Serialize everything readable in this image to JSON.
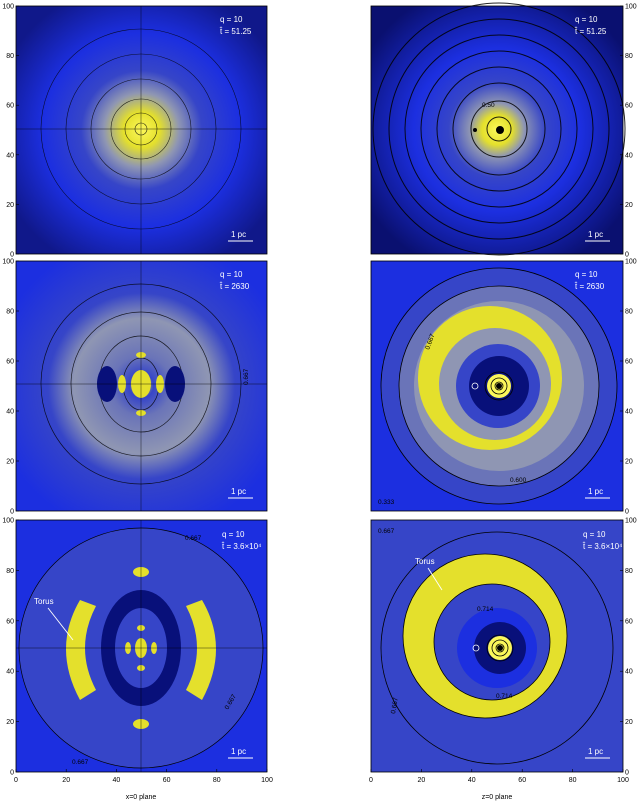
{
  "figure": {
    "axis_ticks": [
      "0",
      "20",
      "40",
      "60",
      "80",
      "100"
    ],
    "x_labels": [
      "x=0 plane",
      "z=0 plane"
    ],
    "colors": {
      "deep": "#08107a",
      "blue": "#1c2fe0",
      "medium": "#3645c8",
      "slate": "#6a74b8",
      "gray": "#8f96b3",
      "yellow": "#e4e02c",
      "bright": "#fbf75a"
    },
    "panels": [
      {
        "id": "p1",
        "plane": "x=0",
        "q": "q = 10",
        "t": "t̂ = 51.25",
        "scale": "1 pc",
        "torus": "",
        "labels": []
      },
      {
        "id": "p2",
        "plane": "z=0",
        "q": "q = 10",
        "t": "t̂ = 51.25",
        "scale": "1 pc",
        "torus": "",
        "labels": [
          "0.50"
        ]
      },
      {
        "id": "p3",
        "plane": "x=0",
        "q": "q = 10",
        "t": "t̂ = 2630",
        "scale": "1 pc",
        "torus": "",
        "labels": [
          "0.667"
        ]
      },
      {
        "id": "p4",
        "plane": "z=0",
        "q": "q = 10",
        "t": "t̂ = 2630",
        "scale": "1 pc",
        "torus": "",
        "labels": [
          "0.667",
          "0.600",
          "0.333"
        ]
      },
      {
        "id": "p5",
        "plane": "x=0",
        "q": "q = 10",
        "t": "t̂ = 3.6×10⁴",
        "scale": "1 pc",
        "torus": "Torus",
        "labels": [
          "0.667",
          "0.667",
          "0.667"
        ]
      },
      {
        "id": "p6",
        "plane": "z=0",
        "q": "q = 10",
        "t": "t̂ = 3.6×10⁴",
        "scale": "1 pc",
        "torus": "Torus",
        "labels": [
          "0.667",
          "0.714",
          "0.714",
          "0.667"
        ]
      }
    ]
  }
}
